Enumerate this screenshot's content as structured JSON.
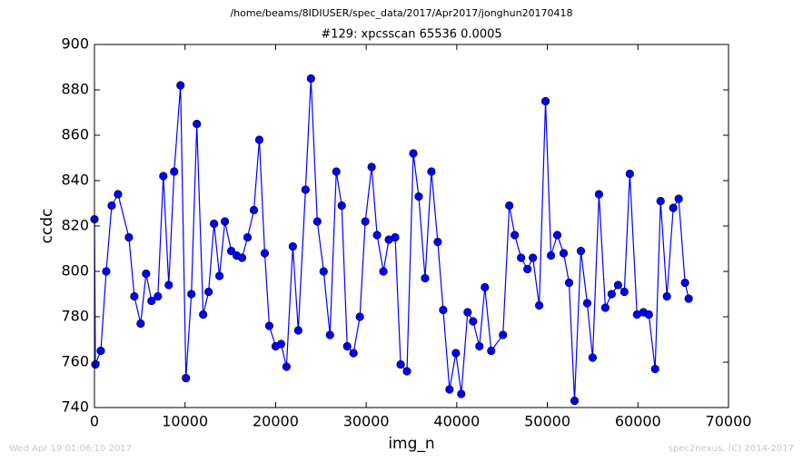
{
  "chart_data": {
    "type": "line",
    "suptitle": "/home/beams/8IDIUSER/spec_data/2017/Apr2017/jonghun20170418",
    "title": "#129: xpcsscan 65536 0.0005",
    "xlabel": "img_n",
    "ylabel": "ccdc",
    "footnotes": [
      "Wed Apr 19 01:06:10 2017",
      "spec2nexus, (C) 2014-2017"
    ],
    "x": [
      0,
      100,
      700,
      1300,
      1900,
      2600,
      3800,
      4400,
      5100,
      5700,
      6300,
      7000,
      7600,
      8200,
      8800,
      9500,
      10100,
      10700,
      11300,
      12000,
      12600,
      13200,
      13800,
      14400,
      15100,
      15700,
      16300,
      16900,
      17600,
      18200,
      18800,
      19300,
      20000,
      20600,
      21200,
      21900,
      22500,
      23300,
      23900,
      24600,
      25300,
      26000,
      26700,
      27300,
      27900,
      28600,
      29300,
      29900,
      30600,
      31200,
      31900,
      32500,
      33200,
      33800,
      34500,
      35200,
      35800,
      36500,
      37200,
      37900,
      38500,
      39200,
      39900,
      40500,
      41200,
      41800,
      42500,
      43100,
      43800,
      45100,
      45800,
      46400,
      47100,
      47800,
      48400,
      49100,
      49800,
      50400,
      51100,
      51800,
      52400,
      53000,
      53700,
      54400,
      55000,
      55700,
      56400,
      57100,
      57800,
      58500,
      59100,
      59900,
      60600,
      61200,
      61900,
      62500,
      63200,
      63900,
      64500,
      65200,
      65600
    ],
    "series": [
      {
        "name": "ccdc",
        "color": "#0000ff",
        "values": [
          823,
          759,
          765,
          800,
          829,
          834,
          815,
          789,
          777,
          799,
          787,
          789,
          842,
          794,
          844,
          882,
          753,
          790,
          865,
          781,
          791,
          821,
          798,
          822,
          809,
          807,
          806,
          815,
          827,
          858,
          808,
          776,
          767,
          768,
          758,
          811,
          774,
          836,
          885,
          822,
          800,
          772,
          844,
          829,
          767,
          764,
          780,
          822,
          846,
          816,
          800,
          814,
          815,
          759,
          756,
          852,
          833,
          797,
          844,
          813,
          783,
          748,
          764,
          746,
          782,
          778,
          767,
          793,
          765,
          772,
          829,
          816,
          806,
          801,
          806,
          785,
          875,
          807,
          816,
          808,
          795,
          743,
          809,
          786,
          762,
          834,
          784,
          790,
          794,
          791,
          843,
          781,
          782,
          781,
          757,
          831,
          789,
          828,
          832,
          795,
          788
        ]
      }
    ],
    "xlim": [
      0,
      70000
    ],
    "xticks": [
      0,
      10000,
      20000,
      30000,
      40000,
      50000,
      60000,
      70000
    ],
    "ylim": [
      740,
      900
    ],
    "yticks": [
      740,
      760,
      780,
      800,
      820,
      840,
      860,
      880,
      900
    ],
    "grid": false
  }
}
